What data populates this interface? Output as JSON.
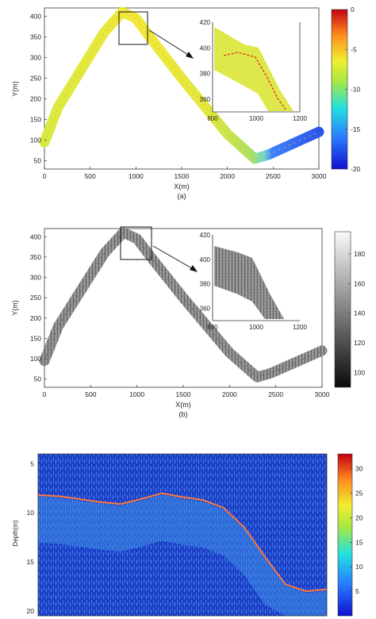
{
  "chart_data": [
    {
      "type": "scatter",
      "panel": "(a)",
      "xlabel": "X(m)",
      "ylabel": "Y(m)",
      "xlim": [
        0,
        3000
      ],
      "ylim": [
        30,
        420
      ],
      "xticks": [
        "0",
        "500",
        "1000",
        "1500",
        "2000",
        "2500",
        "3000"
      ],
      "yticks": [
        "50",
        "100",
        "150",
        "200",
        "250",
        "300",
        "350",
        "400"
      ],
      "track_x": [
        0,
        150,
        400,
        650,
        850,
        1000,
        1150,
        1500,
        2000,
        2300,
        2450,
        3000
      ],
      "track_y": [
        95,
        180,
        270,
        360,
        410,
        395,
        350,
        250,
        115,
        55,
        65,
        120
      ],
      "colorbar": {
        "ticks": [
          "0",
          "-5",
          "-10",
          "-15",
          "-20"
        ],
        "range": [
          -20,
          0
        ],
        "colormap": "jet"
      },
      "inset": {
        "xlim": [
          800,
          1200
        ],
        "ylim": [
          350,
          420
        ],
        "xticks": [
          "800",
          "1000",
          "1200"
        ],
        "yticks": [
          "360",
          "380",
          "400",
          "420"
        ]
      }
    },
    {
      "type": "scatter",
      "panel": "(b)",
      "xlabel": "X(m)",
      "ylabel": "Y(m)",
      "xlim": [
        0,
        3000
      ],
      "ylim": [
        30,
        420
      ],
      "xticks": [
        "0",
        "500",
        "1000",
        "1500",
        "2000",
        "2500",
        "3000"
      ],
      "yticks": [
        "50",
        "100",
        "150",
        "200",
        "250",
        "300",
        "350",
        "400"
      ],
      "track_x": [
        0,
        150,
        400,
        650,
        850,
        1000,
        1150,
        1500,
        2000,
        2300,
        2450,
        3000
      ],
      "track_y": [
        95,
        180,
        270,
        360,
        410,
        395,
        350,
        250,
        115,
        55,
        65,
        120
      ],
      "colorbar": {
        "ticks": [
          "180",
          "160",
          "140",
          "120",
          "100"
        ],
        "range": [
          90,
          195
        ],
        "colormap": "gray"
      },
      "inset": {
        "xlim": [
          800,
          1200
        ],
        "ylim": [
          350,
          420
        ],
        "xticks": [
          "800",
          "1000",
          "1200"
        ],
        "yticks": [
          "360",
          "380",
          "400",
          "420"
        ]
      }
    },
    {
      "type": "heatmap",
      "ylabel": "Depth(m)",
      "ylim": [
        20.5,
        4
      ],
      "yticks": [
        "5",
        "10",
        "15",
        "20"
      ],
      "seabed_depth": [
        8.2,
        8.3,
        8.6,
        8.9,
        9.1,
        8.6,
        8.0,
        8.4,
        8.7,
        9.5,
        11.5,
        14.5,
        17.3,
        18.0,
        17.8
      ],
      "colorbar": {
        "ticks": [
          "30",
          "25",
          "20",
          "15",
          "10",
          "5"
        ],
        "range": [
          0,
          33
        ],
        "colormap": "jet"
      }
    }
  ],
  "captions": {
    "a": "(a)",
    "b": "(b)"
  }
}
